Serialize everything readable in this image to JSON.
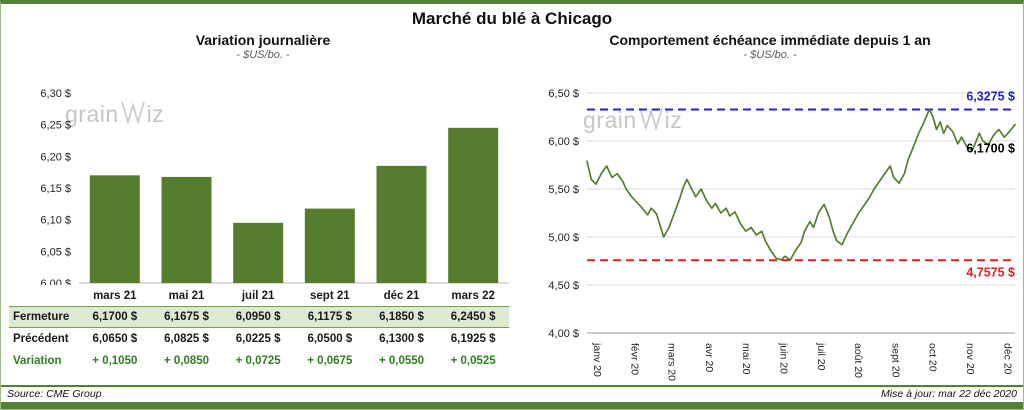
{
  "page": {
    "title": "Marché du blé à Chicago",
    "source": "Source: CME Group",
    "updated": "Mise à jour: mar 22 déc 2020",
    "watermark": {
      "prefix": "grain",
      "suffix": "iz"
    }
  },
  "colors": {
    "green_accent": "#538135",
    "bar_green": "#567d2e",
    "series_green": "#567d2e",
    "high_blue": "#2222cc",
    "low_red": "#e02020",
    "highlight_row_bg": "#dbead1",
    "variation_text": "#2e7d1f",
    "watermark_gray": "#c6c6c6"
  },
  "chart_data": [
    {
      "type": "bar",
      "title": "Variation  journalière",
      "subtitle": "- $US/bo. -",
      "categories": [
        "mars 21",
        "mai 21",
        "juil 21",
        "sept 21",
        "déc 21",
        "mars 22"
      ],
      "values": [
        6.17,
        6.1675,
        6.095,
        6.1175,
        6.185,
        6.245
      ],
      "ylim": [
        6.0,
        6.3
      ],
      "ytick_step": 0.05,
      "bar_color": "#567d2e",
      "grid": false,
      "legend": "none"
    },
    {
      "type": "line",
      "title": "Comportement  échéance  immédiate  depuis 1 an",
      "subtitle": "- $US/bo. -",
      "x_labels": [
        "janv 20",
        "févr 20",
        "mars 20",
        "avr 20",
        "mai 20",
        "juin 20",
        "juil 20",
        "août 20",
        "sept 20",
        "oct 20",
        "nov 20",
        "déc 20"
      ],
      "ylim": [
        4.0,
        6.5
      ],
      "ytick_step": 0.5,
      "grid": true,
      "legend": "none",
      "series": [
        {
          "name": "échéance immédiate",
          "color": "#567d2e",
          "points": [
            [
              0.0,
              5.79
            ],
            [
              0.12,
              5.6
            ],
            [
              0.25,
              5.55
            ],
            [
              0.4,
              5.66
            ],
            [
              0.55,
              5.74
            ],
            [
              0.7,
              5.62
            ],
            [
              0.85,
              5.66
            ],
            [
              1.0,
              5.58
            ],
            [
              1.1,
              5.5
            ],
            [
              1.25,
              5.42
            ],
            [
              1.4,
              5.36
            ],
            [
              1.55,
              5.3
            ],
            [
              1.7,
              5.23
            ],
            [
              1.8,
              5.3
            ],
            [
              1.95,
              5.24
            ],
            [
              2.05,
              5.12
            ],
            [
              2.15,
              5.0
            ],
            [
              2.3,
              5.1
            ],
            [
              2.45,
              5.25
            ],
            [
              2.6,
              5.4
            ],
            [
              2.7,
              5.52
            ],
            [
              2.8,
              5.6
            ],
            [
              2.95,
              5.49
            ],
            [
              3.05,
              5.42
            ],
            [
              3.2,
              5.5
            ],
            [
              3.35,
              5.38
            ],
            [
              3.5,
              5.3
            ],
            [
              3.6,
              5.35
            ],
            [
              3.75,
              5.25
            ],
            [
              3.9,
              5.3
            ],
            [
              4.0,
              5.22
            ],
            [
              4.15,
              5.26
            ],
            [
              4.3,
              5.14
            ],
            [
              4.45,
              5.06
            ],
            [
              4.6,
              5.1
            ],
            [
              4.75,
              5.02
            ],
            [
              4.9,
              5.06
            ],
            [
              5.0,
              4.96
            ],
            [
              5.15,
              4.86
            ],
            [
              5.3,
              4.78
            ],
            [
              5.45,
              4.76
            ],
            [
              5.55,
              4.8
            ],
            [
              5.7,
              4.76
            ],
            [
              5.85,
              4.86
            ],
            [
              6.0,
              4.94
            ],
            [
              6.1,
              5.06
            ],
            [
              6.25,
              5.16
            ],
            [
              6.35,
              5.1
            ],
            [
              6.5,
              5.26
            ],
            [
              6.65,
              5.34
            ],
            [
              6.8,
              5.2
            ],
            [
              6.9,
              5.06
            ],
            [
              7.0,
              4.96
            ],
            [
              7.15,
              4.92
            ],
            [
              7.3,
              5.04
            ],
            [
              7.45,
              5.14
            ],
            [
              7.6,
              5.24
            ],
            [
              7.75,
              5.32
            ],
            [
              7.9,
              5.4
            ],
            [
              8.05,
              5.5
            ],
            [
              8.2,
              5.58
            ],
            [
              8.35,
              5.66
            ],
            [
              8.5,
              5.74
            ],
            [
              8.6,
              5.62
            ],
            [
              8.75,
              5.56
            ],
            [
              8.9,
              5.66
            ],
            [
              9.0,
              5.8
            ],
            [
              9.15,
              5.94
            ],
            [
              9.3,
              6.08
            ],
            [
              9.45,
              6.2
            ],
            [
              9.6,
              6.33
            ],
            [
              9.7,
              6.25
            ],
            [
              9.8,
              6.12
            ],
            [
              9.9,
              6.2
            ],
            [
              10.0,
              6.08
            ],
            [
              10.1,
              6.16
            ],
            [
              10.25,
              6.1
            ],
            [
              10.4,
              5.97
            ],
            [
              10.5,
              6.04
            ],
            [
              10.65,
              5.94
            ],
            [
              10.8,
              5.9
            ],
            [
              10.9,
              5.99
            ],
            [
              11.0,
              6.08
            ],
            [
              11.1,
              6.0
            ],
            [
              11.25,
              5.96
            ],
            [
              11.4,
              6.06
            ],
            [
              11.55,
              6.12
            ],
            [
              11.7,
              6.04
            ],
            [
              11.85,
              6.1
            ],
            [
              12.0,
              6.17
            ]
          ]
        }
      ],
      "reference_lines": [
        {
          "value": 6.3275,
          "label": "6,3275 $",
          "color": "#2222cc",
          "style": "dashed",
          "position": "above-right"
        },
        {
          "value": 4.7575,
          "label": "4,7575 $",
          "color": "#e02020",
          "style": "dashed",
          "position": "below-right"
        }
      ],
      "last_value_label": {
        "value": 6.17,
        "label": "6,1700 $",
        "color": "#000000"
      }
    }
  ],
  "table": {
    "columns": [
      "mars 21",
      "mai 21",
      "juil 21",
      "sept 21",
      "déc 21",
      "mars 22"
    ],
    "rows": [
      {
        "label": "Fermeture",
        "values": [
          "6,1700 $",
          "6,1675 $",
          "6,0950 $",
          "6,1175 $",
          "6,1850 $",
          "6,2450 $"
        ],
        "highlight": true,
        "accent": false
      },
      {
        "label": "Précédent",
        "values": [
          "6,0650 $",
          "6,0825 $",
          "6,0225 $",
          "6,0500 $",
          "6,1300 $",
          "6,1925 $"
        ],
        "highlight": false,
        "accent": false
      },
      {
        "label": "Variation",
        "values": [
          "+ 0,1050",
          "+ 0,0850",
          "+ 0,0725",
          "+ 0,0675",
          "+ 0,0550",
          "+ 0,0525"
        ],
        "highlight": false,
        "accent": true
      }
    ]
  }
}
